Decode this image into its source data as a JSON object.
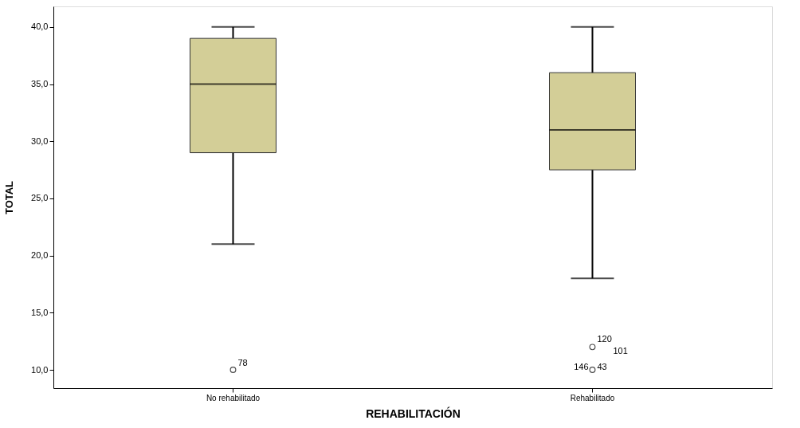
{
  "chart_data": {
    "type": "box",
    "xlabel": "REHABILITACIÓN",
    "ylabel": "TOTAL",
    "categories": [
      "No rehabilitado",
      "Rehabilitado"
    ],
    "boxes": [
      {
        "low": 21,
        "q1": 29,
        "median": 35,
        "q3": 39,
        "high": 40,
        "outliers": [
          10
        ]
      },
      {
        "low": 18,
        "q1": 27.5,
        "median": 31,
        "q3": 36,
        "high": 40,
        "outliers": [
          12,
          10
        ]
      }
    ],
    "color": "#d3ce97",
    "ylim": [
      8.4,
      41.8
    ],
    "yticks": [
      {
        "value": 10,
        "label": "10,0"
      },
      {
        "value": 15,
        "label": "15,0"
      },
      {
        "value": 20,
        "label": "20,0"
      },
      {
        "value": 25,
        "label": "25,0"
      },
      {
        "value": 30,
        "label": "30,0"
      },
      {
        "value": 35,
        "label": "35,0"
      },
      {
        "value": 40,
        "label": "40,0"
      }
    ],
    "grid": false,
    "annotations": [
      "78",
      "120",
      "101",
      "146",
      "43"
    ]
  }
}
